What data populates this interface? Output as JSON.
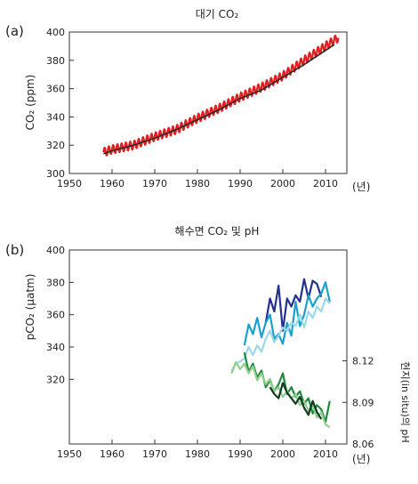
{
  "colors": {
    "co2_monthly": "#e02020",
    "co2_annual": "#2a2a2a",
    "pco2_1": "#23308f",
    "pco2_2": "#1aa0cc",
    "pco2_3": "#9ed8e8",
    "ph_1": "#1f8a3c",
    "ph_2": "#8fd08f",
    "ph_3": "#123a1e"
  },
  "chart_data": [
    {
      "type": "line",
      "panel_label": "(a)",
      "title": "대기 CO₂",
      "ylabel": "CO₂ (ppm)",
      "xlabel": "(년)",
      "xlim": [
        1950,
        2015
      ],
      "ylim": [
        300,
        400
      ],
      "xticks": [
        "1950",
        "1960",
        "1970",
        "1980",
        "1990",
        "2000",
        "2010"
      ],
      "yticks": [
        "300",
        "320",
        "340",
        "360",
        "380",
        "400"
      ],
      "series": [
        {
          "name": "",
          "role": "monthly",
          "color": "#e02020",
          "seasonal_amplitude_ppm": 3,
          "x": [
            1958,
            1960,
            1965,
            1970,
            1975,
            1980,
            1985,
            1990,
            1995,
            2000,
            2005,
            2010,
            2013
          ],
          "y": [
            315,
            317,
            320,
            326,
            331,
            339,
            346,
            354,
            361,
            369,
            380,
            390,
            396
          ]
        },
        {
          "name": "",
          "role": "annual",
          "color": "#2a2a2a",
          "x": [
            1958,
            1960,
            1965,
            1970,
            1975,
            1980,
            1985,
            1990,
            1995,
            2000,
            2005,
            2010,
            2012
          ],
          "y": [
            314,
            316,
            320,
            325,
            331,
            338,
            345,
            353,
            359,
            368,
            377,
            387,
            391
          ]
        }
      ]
    },
    {
      "type": "line",
      "panel_label": "(b)",
      "title": "해수면 CO₂ 및 pH",
      "ylabel": "pCO₂ (μatm)",
      "y2label": "현지(in situ)의 pH",
      "xlabel": "(년)",
      "xlim": [
        1950,
        2015
      ],
      "ylim": [
        280,
        400
      ],
      "y2lim": [
        8.06,
        8.2
      ],
      "xticks": [
        "1950",
        "1960",
        "1970",
        "1980",
        "1990",
        "2000",
        "2010"
      ],
      "yticks": [
        "320",
        "340",
        "360",
        "380",
        "400"
      ],
      "y2ticks": [
        "8.06",
        "8.09",
        "8.12"
      ],
      "series": [
        {
          "name": "",
          "color": "#23308f",
          "axis": "left",
          "x": [
            1996,
            1997,
            1998,
            1999,
            2000,
            2001,
            2002,
            2003,
            2004,
            2005,
            2006,
            2007,
            2008,
            2009
          ],
          "y": [
            355,
            370,
            362,
            378,
            350,
            370,
            365,
            372,
            368,
            382,
            370,
            381,
            379,
            371
          ]
        },
        {
          "name": "",
          "color": "#1aa0cc",
          "axis": "left",
          "x": [
            1991,
            1992,
            1993,
            1994,
            1995,
            1996,
            1997,
            1998,
            1999,
            2000,
            2001,
            2002,
            2003,
            2004,
            2005,
            2006,
            2007,
            2008,
            2009,
            2010,
            2011
          ],
          "y": [
            341,
            354,
            348,
            358,
            346,
            355,
            360,
            345,
            348,
            342,
            355,
            347,
            368,
            353,
            360,
            372,
            365,
            370,
            373,
            380,
            368
          ]
        },
        {
          "name": "",
          "color": "#9ed8e8",
          "axis": "left",
          "x": [
            1988,
            1989,
            1990,
            1991,
            1992,
            1993,
            1994,
            1995,
            1996,
            1997,
            1998,
            1999,
            2000,
            2001,
            2002,
            2003,
            2004,
            2005,
            2006,
            2007,
            2008,
            2009,
            2010,
            2011
          ],
          "y": [
            325,
            330,
            331,
            333,
            340,
            335,
            341,
            337,
            345,
            350,
            343,
            347,
            352,
            350,
            355,
            353,
            360,
            352,
            362,
            358,
            365,
            362,
            370,
            367
          ]
        },
        {
          "name": "",
          "color": "#1f8a3c",
          "axis": "right",
          "x": [
            1991,
            1992,
            1993,
            1994,
            1995,
            1996,
            1997,
            1998,
            1999,
            2000,
            2001,
            2002,
            2003,
            2004,
            2005,
            2006,
            2007,
            2008,
            2009,
            2010,
            2011
          ],
          "y": [
            8.126,
            8.112,
            8.118,
            8.108,
            8.113,
            8.101,
            8.106,
            8.098,
            8.103,
            8.111,
            8.096,
            8.101,
            8.094,
            8.098,
            8.089,
            8.093,
            8.082,
            8.088,
            8.085,
            8.076,
            8.091
          ]
        },
        {
          "name": "",
          "color": "#8fd08f",
          "axis": "right",
          "x": [
            1988,
            1989,
            1990,
            1991,
            1992,
            1993,
            1994,
            1995,
            1996,
            1997,
            1998,
            1999,
            2000,
            2001,
            2002,
            2003,
            2004,
            2005,
            2006,
            2007,
            2008,
            2009,
            2010,
            2011
          ],
          "y": [
            8.111,
            8.119,
            8.114,
            8.118,
            8.111,
            8.116,
            8.106,
            8.111,
            8.103,
            8.107,
            8.098,
            8.101,
            8.094,
            8.098,
            8.093,
            8.096,
            8.088,
            8.091,
            8.084,
            8.088,
            8.079,
            8.083,
            8.074,
            8.072
          ]
        },
        {
          "name": "",
          "color": "#123a1e",
          "axis": "right",
          "x": [
            1997,
            1998,
            1999,
            2000,
            2001,
            2002,
            2003,
            2004,
            2005,
            2006,
            2007,
            2008,
            2009
          ],
          "y": [
            8.101,
            8.096,
            8.093,
            8.104,
            8.097,
            8.093,
            8.089,
            8.094,
            8.086,
            8.081,
            8.091,
            8.083,
            8.078
          ]
        }
      ]
    }
  ]
}
